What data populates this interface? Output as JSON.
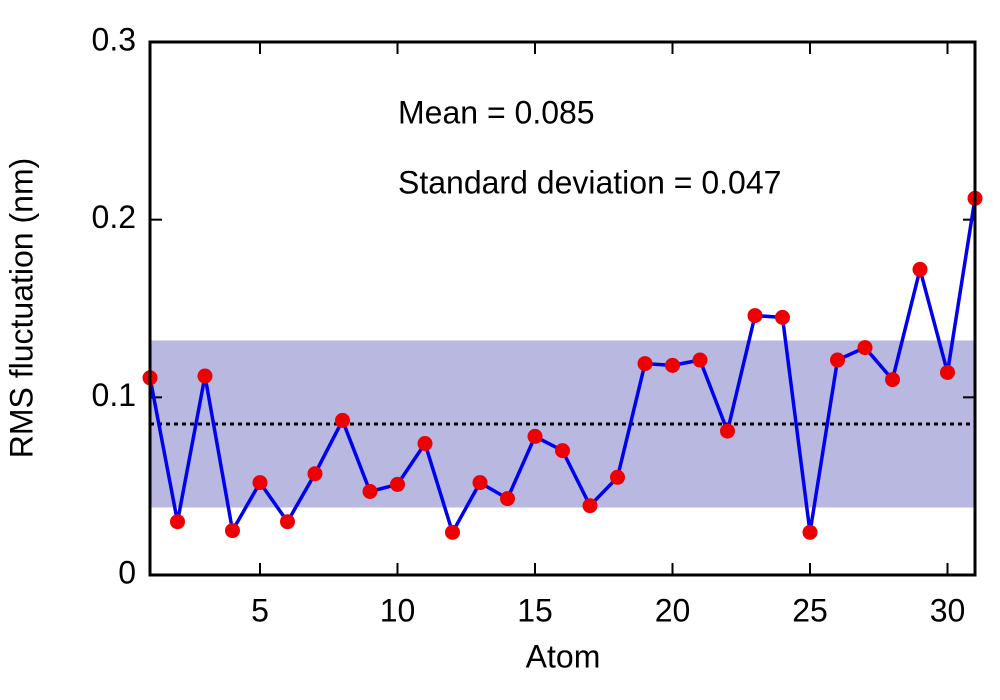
{
  "chart_data": {
    "type": "line",
    "x_label": "Atom",
    "y_label": "RMS fluctuation (nm)",
    "annotations": [
      "Mean = 0.085",
      "Standard deviation = 0.047"
    ],
    "mean": 0.085,
    "std": 0.047,
    "x": [
      1,
      2,
      3,
      4,
      5,
      6,
      7,
      8,
      9,
      10,
      11,
      12,
      13,
      14,
      15,
      16,
      17,
      18,
      19,
      20,
      21,
      22,
      23,
      24,
      25,
      26,
      27,
      28,
      29,
      30,
      31
    ],
    "series": [
      {
        "color": "#0000ee",
        "marker_color": "#ee0000",
        "values": [
          0.111,
          0.03,
          0.112,
          0.025,
          0.052,
          0.03,
          0.057,
          0.087,
          0.047,
          0.051,
          0.074,
          0.024,
          0.052,
          0.043,
          0.078,
          0.07,
          0.039,
          0.055,
          0.119,
          0.118,
          0.121,
          0.081,
          0.146,
          0.145,
          0.024,
          0.121,
          0.128,
          0.11,
          0.172,
          0.114,
          0.212
        ]
      }
    ],
    "band_color": "#b8b8e0",
    "xlim": [
      1,
      31
    ],
    "xticks": [
      5,
      10,
      15,
      20,
      25,
      30
    ],
    "ylim": [
      0,
      0.3
    ],
    "yticks": [
      0,
      0.1,
      0.2,
      0.3
    ]
  }
}
